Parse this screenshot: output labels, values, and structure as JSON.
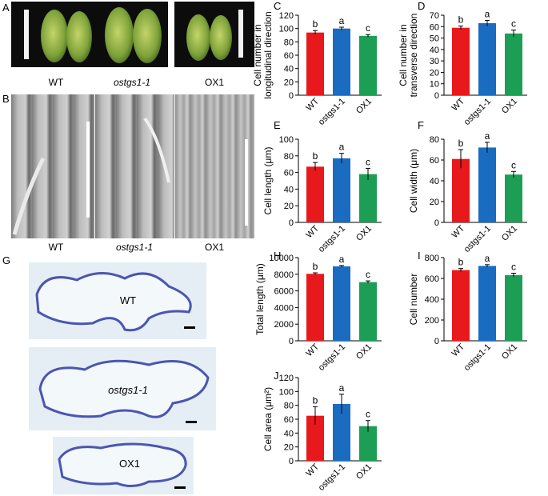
{
  "panel_letters": {
    "A": "A",
    "B": "B",
    "G": "G"
  },
  "photo_labels": {
    "a_wt": "WT",
    "a_mut": "ostgs1-1",
    "a_ox": "OX1",
    "b_wt": "WT",
    "b_mut": "ostgs1-1",
    "b_ox": "OX1",
    "g_wt": "WT",
    "g_mut": "ostgs1-1",
    "g_ox": "OX1"
  },
  "colors": {
    "WT": "#e8191c",
    "ostgs1-1": "#1a6cc1",
    "OX1": "#1c9f55"
  },
  "chart_data": [
    {
      "panel": "C",
      "type": "bar",
      "categories": [
        "WT",
        "ostgs1-1",
        "OX1"
      ],
      "values": [
        94,
        100,
        89
      ],
      "errors": [
        3,
        2,
        2
      ],
      "letters": [
        "b",
        "a",
        "c"
      ],
      "ylabel": "Cell number in longitudinal direction",
      "ylabel_lines": [
        "Cell number in",
        "longitudinal direction"
      ],
      "ylim": [
        0,
        120
      ],
      "ticks": [
        0,
        20,
        40,
        60,
        80,
        100,
        120
      ]
    },
    {
      "panel": "D",
      "type": "bar",
      "categories": [
        "WT",
        "ostgs1-1",
        "OX1"
      ],
      "values": [
        59,
        63,
        54
      ],
      "errors": [
        1.5,
        2.5,
        3
      ],
      "letters": [
        "b",
        "a",
        "c"
      ],
      "ylabel": "Cell number in transverse direction",
      "ylabel_lines": [
        "Cell number in",
        "transverse direction"
      ],
      "ylim": [
        0,
        70
      ],
      "ticks": [
        0,
        10,
        20,
        30,
        40,
        50,
        60,
        70
      ]
    },
    {
      "panel": "E",
      "type": "bar",
      "categories": [
        "WT",
        "ostgs1-1",
        "OX1"
      ],
      "values": [
        67,
        77,
        58
      ],
      "errors": [
        5,
        6,
        7
      ],
      "letters": [
        "b",
        "a",
        "c"
      ],
      "ylabel": "Cell length (μm)",
      "ylabel_lines": [
        "Cell length (μm)"
      ],
      "ylim": [
        0,
        100
      ],
      "ticks": [
        0,
        20,
        40,
        60,
        80,
        100
      ]
    },
    {
      "panel": "F",
      "type": "bar",
      "categories": [
        "WT",
        "ostgs1-1",
        "OX1"
      ],
      "values": [
        61,
        72,
        46
      ],
      "errors": [
        9,
        5,
        3
      ],
      "letters": [
        "b",
        "a",
        "c"
      ],
      "ylabel": "Cell width (μm)",
      "ylabel_lines": [
        "Cell width (μm)"
      ],
      "ylim": [
        0,
        80
      ],
      "ticks": [
        0,
        20,
        40,
        60,
        80
      ]
    },
    {
      "panel": "H",
      "type": "bar",
      "categories": [
        "WT",
        "ostgs1-1",
        "OX1"
      ],
      "values": [
        8050,
        8950,
        7050
      ],
      "errors": [
        120,
        100,
        150
      ],
      "letters": [
        "b",
        "a",
        "c"
      ],
      "ylabel": "Total length (μm)",
      "ylabel_lines": [
        "Total length (μm)"
      ],
      "ylim": [
        0,
        10000
      ],
      "ticks": [
        0,
        2000,
        4000,
        6000,
        8000,
        10000
      ]
    },
    {
      "panel": "I",
      "type": "bar",
      "categories": [
        "WT",
        "ostgs1-1",
        "OX1"
      ],
      "values": [
        680,
        720,
        632
      ],
      "errors": [
        15,
        12,
        18
      ],
      "letters": [
        "b",
        "a",
        "c"
      ],
      "ylabel": "Cell number",
      "ylabel_lines": [
        "Cell number"
      ],
      "ylim": [
        0,
        800
      ],
      "ticks": [
        0,
        200,
        400,
        600,
        800
      ]
    },
    {
      "panel": "J",
      "type": "bar",
      "categories": [
        "WT",
        "ostgs1-1",
        "OX1"
      ],
      "values": [
        65,
        82,
        50
      ],
      "errors": [
        13,
        14,
        8
      ],
      "letters": [
        "b",
        "a",
        "c"
      ],
      "ylabel": "Cell area (μm²)",
      "ylabel_lines": [
        "Cell area (μm²)"
      ],
      "ylim": [
        0,
        120
      ],
      "ticks": [
        0,
        20,
        40,
        60,
        80,
        100,
        120
      ]
    }
  ]
}
